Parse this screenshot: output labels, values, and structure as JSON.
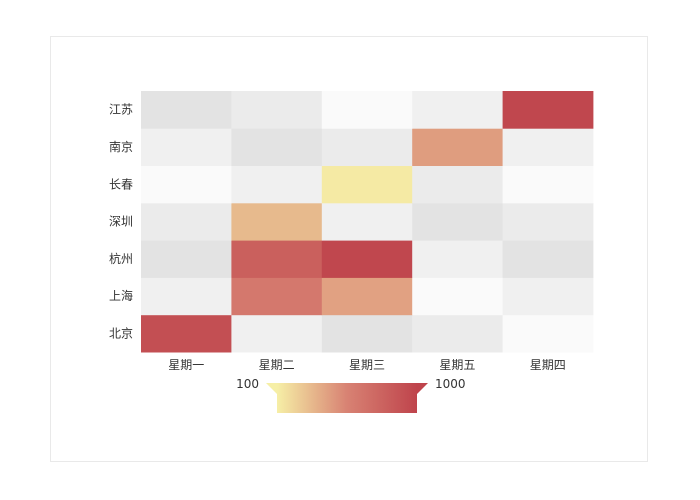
{
  "chart_data": {
    "type": "heatmap",
    "x_categories": [
      "星期一",
      "星期二",
      "星期三",
      "星期五",
      "星期四"
    ],
    "y_categories": [
      "北京",
      "上海",
      "杭州",
      "深圳",
      "长春",
      "南京",
      "江苏"
    ],
    "cells": [
      {
        "x": "星期一",
        "y": "北京",
        "value": 920
      },
      {
        "x": "星期三",
        "y": "上海",
        "value": 420
      },
      {
        "x": "星期二",
        "y": "上海",
        "value": 620
      },
      {
        "x": "星期二",
        "y": "杭州",
        "value": 800
      },
      {
        "x": "星期三",
        "y": "杭州",
        "value": 980
      },
      {
        "x": "星期二",
        "y": "深圳",
        "value": 320
      },
      {
        "x": "星期三",
        "y": "长春",
        "value": 120
      },
      {
        "x": "星期五",
        "y": "南京",
        "value": 440
      },
      {
        "x": "星期四",
        "y": "江苏",
        "value": 980
      }
    ],
    "empty_stripe_colors": [
      "#fafafa",
      "#f0f0f0",
      "#e3e3e3",
      "#ebebeb"
    ],
    "visual_map": {
      "min": 100,
      "max": 1000,
      "min_label": "100",
      "max_label": "1000",
      "colors": [
        "#f6efa6",
        "#d88273",
        "#bf444c"
      ],
      "orient": "horizontal",
      "placement": "bottom-center"
    },
    "grid": false
  }
}
